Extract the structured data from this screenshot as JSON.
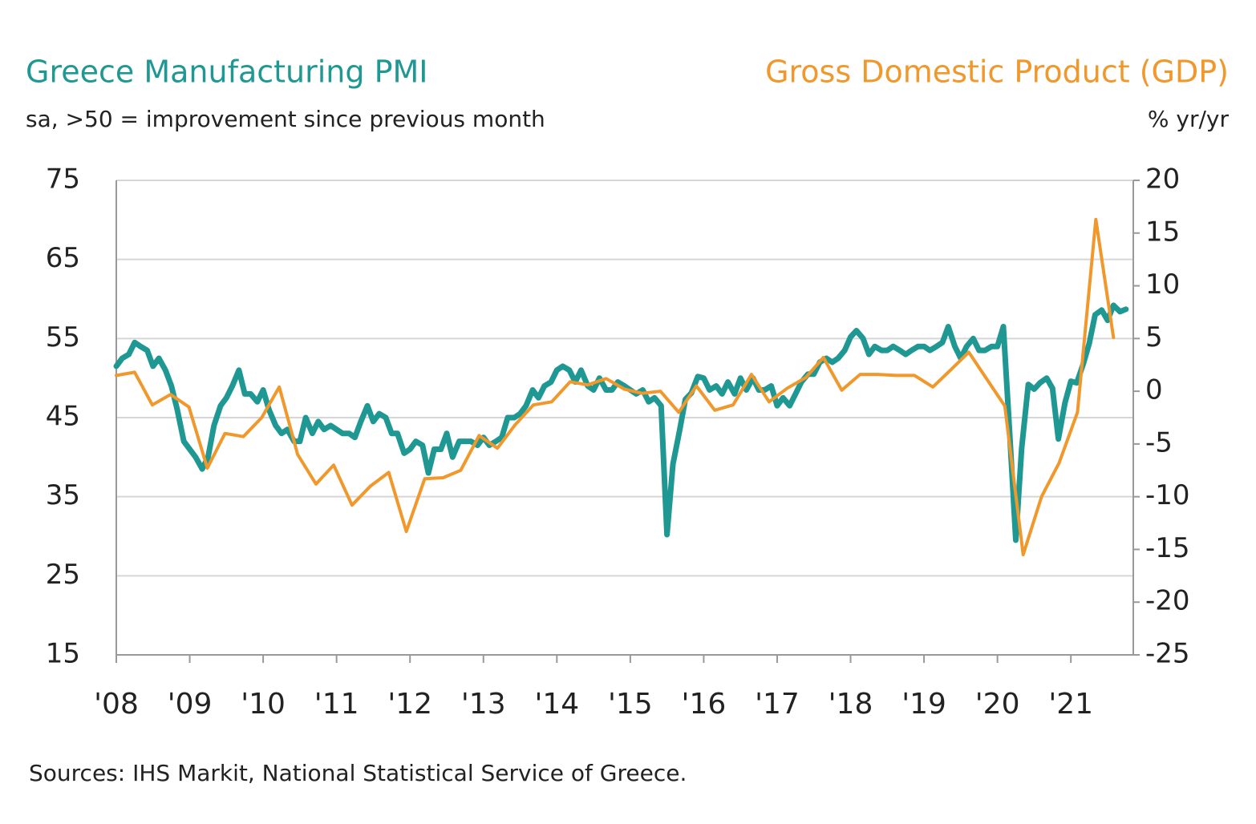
{
  "chart_data": {
    "type": "line",
    "ylabel": "sa, >50 = improvement since previous month",
    "y2label": "% yr/yr",
    "source": "Sources: IHS Markit, National Statistical Service of Greece.",
    "xlim": [
      2008,
      2021.85
    ],
    "xticks": [
      {
        "value": 2008,
        "label": "'08"
      },
      {
        "value": 2009,
        "label": "'09"
      },
      {
        "value": 2010,
        "label": "'10"
      },
      {
        "value": 2011,
        "label": "'11"
      },
      {
        "value": 2012,
        "label": "'12"
      },
      {
        "value": 2013,
        "label": "'13"
      },
      {
        "value": 2014,
        "label": "'14"
      },
      {
        "value": 2015,
        "label": "'15"
      },
      {
        "value": 2016,
        "label": "'16"
      },
      {
        "value": 2017,
        "label": "'17"
      },
      {
        "value": 2018,
        "label": "'18"
      },
      {
        "value": 2019,
        "label": "'19"
      },
      {
        "value": 2020,
        "label": "'20"
      },
      {
        "value": 2021,
        "label": "'21"
      }
    ],
    "ylim": [
      15,
      75
    ],
    "yticks": [
      15,
      25,
      35,
      45,
      55,
      65,
      75
    ],
    "y2lim": [
      -25,
      20
    ],
    "y2ticks": [
      -25,
      -20,
      -15,
      -10,
      -5,
      0,
      5,
      10,
      15,
      20
    ],
    "grid": true,
    "series": [
      {
        "name": "Greece Manufacturing PMI",
        "color": "#1f9893",
        "axis": "y",
        "x": [
          2008,
          2008.08,
          2008.17,
          2008.25,
          2008.33,
          2008.42,
          2008.5,
          2008.58,
          2008.67,
          2008.75,
          2008.83,
          2008.92,
          2009,
          2009.08,
          2009.17,
          2009.25,
          2009.33,
          2009.42,
          2009.5,
          2009.58,
          2009.67,
          2009.75,
          2009.83,
          2009.92,
          2010,
          2010.08,
          2010.17,
          2010.25,
          2010.33,
          2010.42,
          2010.5,
          2010.58,
          2010.67,
          2010.75,
          2010.83,
          2010.92,
          2011,
          2011.08,
          2011.17,
          2011.25,
          2011.33,
          2011.42,
          2011.5,
          2011.58,
          2011.67,
          2011.75,
          2011.83,
          2011.92,
          2012,
          2012.08,
          2012.17,
          2012.25,
          2012.33,
          2012.42,
          2012.5,
          2012.58,
          2012.67,
          2012.75,
          2012.83,
          2012.92,
          2013,
          2013.08,
          2013.17,
          2013.25,
          2013.33,
          2013.42,
          2013.5,
          2013.58,
          2013.67,
          2013.75,
          2013.83,
          2013.92,
          2014,
          2014.08,
          2014.17,
          2014.25,
          2014.33,
          2014.42,
          2014.5,
          2014.58,
          2014.67,
          2014.75,
          2014.83,
          2014.92,
          2015,
          2015.08,
          2015.17,
          2015.25,
          2015.33,
          2015.42,
          2015.5,
          2015.58,
          2015.67,
          2015.75,
          2015.83,
          2015.92,
          2016,
          2016.08,
          2016.17,
          2016.25,
          2016.33,
          2016.42,
          2016.5,
          2016.58,
          2016.67,
          2016.75,
          2016.83,
          2016.92,
          2017,
          2017.08,
          2017.17,
          2017.25,
          2017.33,
          2017.42,
          2017.5,
          2017.58,
          2017.67,
          2017.75,
          2017.83,
          2017.92,
          2018,
          2018.08,
          2018.17,
          2018.25,
          2018.33,
          2018.42,
          2018.5,
          2018.58,
          2018.67,
          2018.75,
          2018.83,
          2018.92,
          2019,
          2019.08,
          2019.17,
          2019.25,
          2019.33,
          2019.42,
          2019.5,
          2019.58,
          2019.67,
          2019.75,
          2019.83,
          2019.92,
          2020,
          2020.08,
          2020.17,
          2020.25,
          2020.33,
          2020.42,
          2020.5,
          2020.58,
          2020.67,
          2020.75,
          2020.83,
          2020.92,
          2021,
          2021.08,
          2021.17,
          2021.25,
          2021.33,
          2021.42,
          2021.5,
          2021.58,
          2021.67,
          2021.75
        ],
        "values": [
          51.5,
          52.5,
          53,
          54.5,
          54,
          53.5,
          51.5,
          52.5,
          51,
          49,
          46,
          42,
          41,
          40,
          38.5,
          40,
          44,
          46.5,
          47.5,
          49,
          51,
          48,
          48,
          47,
          48.5,
          46,
          44,
          43,
          43.5,
          42,
          42,
          45,
          43,
          44.5,
          43.5,
          44,
          43.5,
          43,
          43,
          42.5,
          44.5,
          46.5,
          44.5,
          45.5,
          45,
          43,
          43,
          40.5,
          41,
          42,
          41.5,
          38,
          41,
          41,
          43,
          40,
          42,
          42,
          42,
          41.5,
          42.5,
          41.5,
          42,
          42.5,
          45,
          45,
          45.5,
          46.5,
          48.5,
          47.5,
          49,
          49.5,
          51,
          51.5,
          51,
          49.5,
          51,
          49,
          48.5,
          50,
          48.5,
          48.5,
          49.5,
          49,
          48.5,
          48,
          48.5,
          47,
          47.5,
          46.5,
          30.2,
          39.1,
          43.3,
          47.3,
          48.1,
          50.2,
          50,
          48.5,
          49,
          48,
          49.5,
          48,
          50,
          48.5,
          50,
          48.5,
          48.5,
          49,
          46.5,
          47.5,
          46.5,
          48,
          49.5,
          50.5,
          50.5,
          52,
          52.5,
          52,
          52.5,
          53.5,
          55.2,
          56,
          55,
          53,
          54,
          53.5,
          53.5,
          54,
          53.5,
          53,
          53.5,
          54,
          54,
          53.5,
          54,
          54.5,
          56.5,
          54,
          52.5,
          54,
          55,
          53.5,
          53.5,
          54,
          54,
          56.5,
          42.5,
          29.5,
          41.1,
          49.2,
          48.6,
          49.4,
          50,
          48.7,
          42.3,
          46.9,
          49.6,
          49.4,
          51.8,
          54.4,
          58,
          58.6,
          57.3,
          59.2,
          58.4,
          58.7
        ]
      },
      {
        "name": "Gross Domestic Product (GDP)",
        "color": "#f0982b",
        "axis": "y2",
        "x": [
          2008,
          2008.25,
          2008.49,
          2008.74,
          2008.99,
          2009.24,
          2009.48,
          2009.73,
          2009.98,
          2010.22,
          2010.47,
          2010.72,
          2010.96,
          2011.21,
          2011.46,
          2011.71,
          2011.95,
          2012.2,
          2012.45,
          2012.69,
          2012.94,
          2013.19,
          2013.43,
          2013.68,
          2013.93,
          2014.18,
          2014.42,
          2014.67,
          2014.92,
          2015.16,
          2015.41,
          2015.66,
          2015.9,
          2016.15,
          2016.4,
          2016.65,
          2016.89,
          2017.14,
          2017.39,
          2017.63,
          2017.88,
          2018.13,
          2018.37,
          2018.62,
          2018.87,
          2019.12,
          2019.36,
          2019.61,
          2019.86,
          2020.1,
          2020.35,
          2020.6,
          2020.84,
          2021.09,
          2021.34,
          2021.58
        ],
        "values": [
          1.5,
          1.8,
          -1.3,
          -0.3,
          -1.5,
          -7.3,
          -4,
          -4.3,
          -2.5,
          0.4,
          -6,
          -8.8,
          -7,
          -10.8,
          -9,
          -7.7,
          -13.3,
          -8.3,
          -8.2,
          -7.5,
          -4.2,
          -5.4,
          -3.2,
          -1.3,
          -1,
          0.9,
          0.6,
          1.2,
          0.2,
          -0.2,
          0,
          -2,
          0.5,
          -1.8,
          -1.3,
          1.6,
          -1,
          0.3,
          1.3,
          3.2,
          0.1,
          1.6,
          1.6,
          1.5,
          1.5,
          0.4,
          2,
          3.7,
          1.1,
          -1.4,
          -15.5,
          -10,
          -6.8,
          -2,
          16.3,
          5.1
        ]
      }
    ]
  }
}
